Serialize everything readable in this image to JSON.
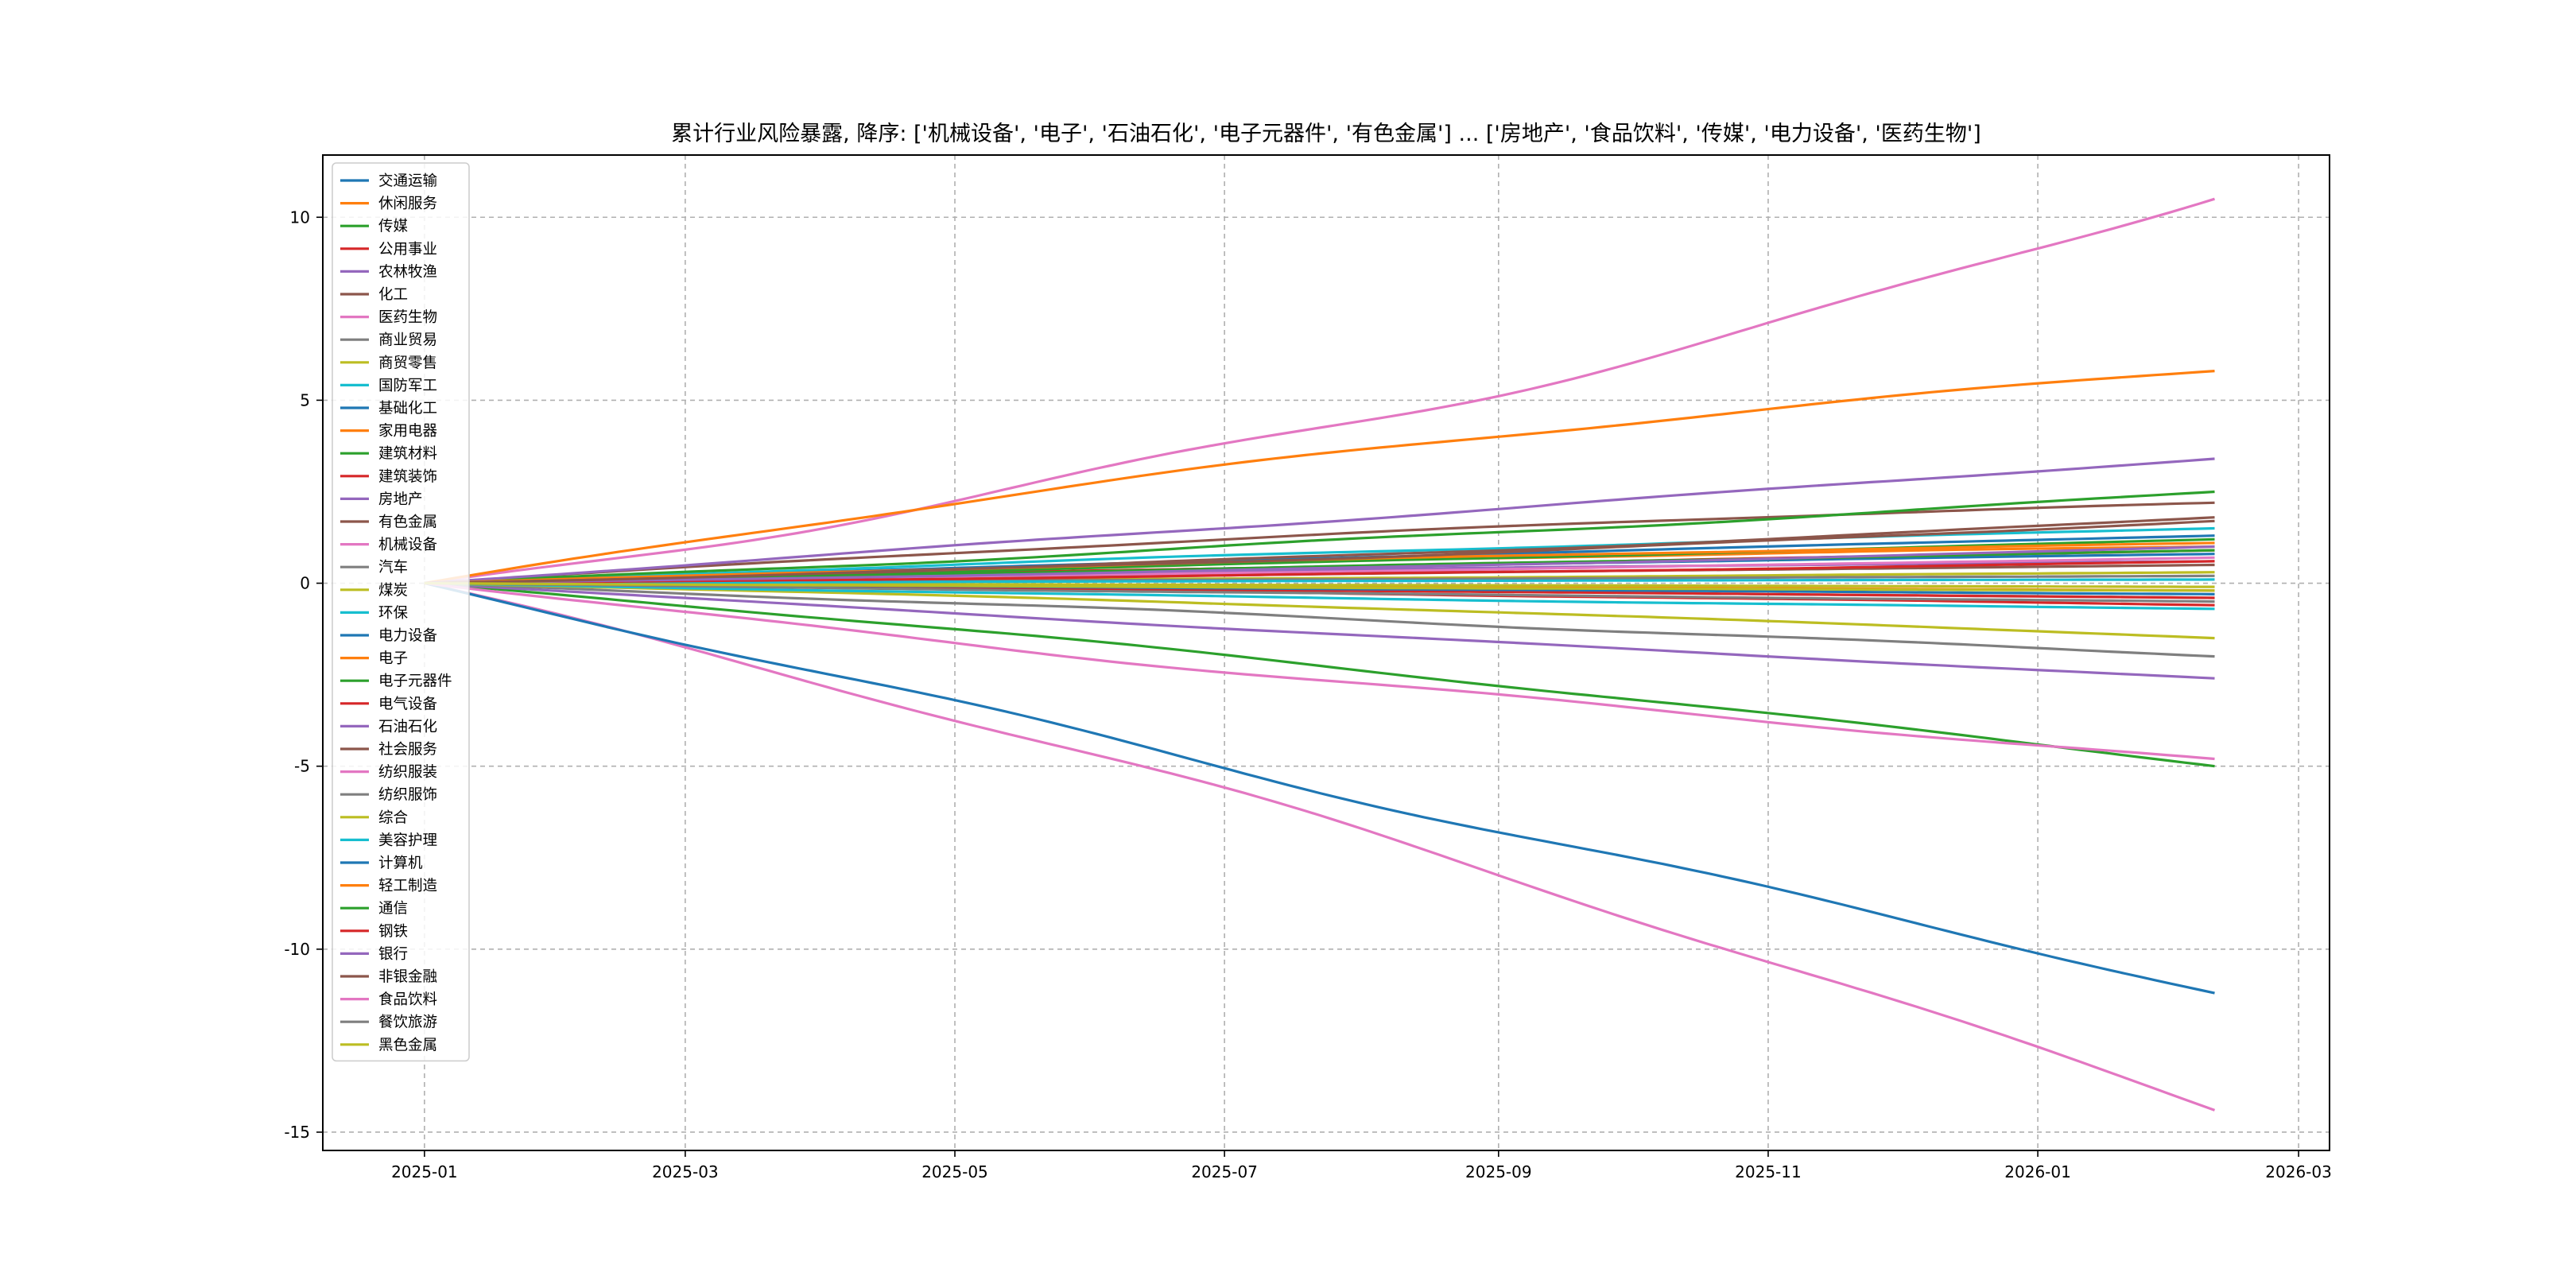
{
  "chart_data": {
    "type": "line",
    "title": "累计行业风险暴露, 降序: ['机械设备', '电子', '石油石化', '电子元器件', '有色金属'] ... ['房地产', '食品饮料', '传媒', '电力设备', '医药生物']",
    "xlabel": "",
    "ylabel": "",
    "x_range": [
      "2024-12-09",
      "2026-03-08"
    ],
    "ylim": [
      -15.5,
      11.7
    ],
    "x_ticks": [
      {
        "date": "2025-01-01",
        "label": "2025-01"
      },
      {
        "date": "2025-03-01",
        "label": "2025-03"
      },
      {
        "date": "2025-05-01",
        "label": "2025-05"
      },
      {
        "date": "2025-07-01",
        "label": "2025-07"
      },
      {
        "date": "2025-09-01",
        "label": "2025-09"
      },
      {
        "date": "2025-11-01",
        "label": "2025-11"
      },
      {
        "date": "2026-01-01",
        "label": "2026-01"
      },
      {
        "date": "2026-03-01",
        "label": "2026-03"
      }
    ],
    "y_ticks": [
      10,
      5,
      0,
      -5,
      -10,
      -15
    ],
    "grid": true,
    "legend_position": "upper-left",
    "x_start": "2025-01-01",
    "x_end": "2026-02-10",
    "series": [
      {
        "name": "交通运输",
        "color": "#1f77b4",
        "end": 0.8
      },
      {
        "name": "休闲服务",
        "color": "#ff7f0e",
        "end": -0.2
      },
      {
        "name": "传媒",
        "color": "#2ca02c",
        "end": -5.0
      },
      {
        "name": "公用事业",
        "color": "#d62728",
        "end": 0.9
      },
      {
        "name": "农林牧渔",
        "color": "#9467bd",
        "end": 0.6
      },
      {
        "name": "化工",
        "color": "#8c564b",
        "end": 0.5
      },
      {
        "name": "医药生物",
        "color": "#e377c2",
        "end": -14.4
      },
      {
        "name": "商业贸易",
        "color": "#7f7f7f",
        "end": -0.4
      },
      {
        "name": "商贸零售",
        "color": "#bcbd22",
        "end": 0.3
      },
      {
        "name": "国防军工",
        "color": "#17becf",
        "end": 1.5
      },
      {
        "name": "基础化工",
        "color": "#1f77b4",
        "end": 1.3
      },
      {
        "name": "家用电器",
        "color": "#ff7f0e",
        "end": 1.0
      },
      {
        "name": "建筑材料",
        "color": "#2ca02c",
        "end": 1.2
      },
      {
        "name": "建筑装饰",
        "color": "#d62728",
        "end": -0.6
      },
      {
        "name": "房地产",
        "color": "#9467bd",
        "end": -2.6
      },
      {
        "name": "有色金属",
        "color": "#8c564b",
        "end": 2.2
      },
      {
        "name": "机械设备",
        "color": "#e377c2",
        "end": 10.5
      },
      {
        "name": "汽车",
        "color": "#7f7f7f",
        "end": 0.2
      },
      {
        "name": "煤炭",
        "color": "#bcbd22",
        "end": -0.1
      },
      {
        "name": "环保",
        "color": "#17becf",
        "end": 0.1
      },
      {
        "name": "电力设备",
        "color": "#1f77b4",
        "end": -11.2
      },
      {
        "name": "电子",
        "color": "#ff7f0e",
        "end": 5.8
      },
      {
        "name": "电子元器件",
        "color": "#2ca02c",
        "end": 2.5
      },
      {
        "name": "电气设备",
        "color": "#d62728",
        "end": -0.4
      },
      {
        "name": "石油石化",
        "color": "#9467bd",
        "end": 3.4
      },
      {
        "name": "社会服务",
        "color": "#8c564b",
        "end": 1.8
      },
      {
        "name": "纺织服装",
        "color": "#e377c2",
        "end": 0.7
      },
      {
        "name": "纺织服饰",
        "color": "#7f7f7f",
        "end": -2.0
      },
      {
        "name": "综合",
        "color": "#bcbd22",
        "end": -1.5
      },
      {
        "name": "美容护理",
        "color": "#17becf",
        "end": -0.7
      },
      {
        "name": "计算机",
        "color": "#1f77b4",
        "end": -0.3
      },
      {
        "name": "轻工制造",
        "color": "#ff7f0e",
        "end": 1.1
      },
      {
        "name": "通信",
        "color": "#2ca02c",
        "end": 0.9
      },
      {
        "name": "钢铁",
        "color": "#d62728",
        "end": 0.6
      },
      {
        "name": "银行",
        "color": "#9467bd",
        "end": 1.0
      },
      {
        "name": "非银金融",
        "color": "#8c564b",
        "end": 1.7
      },
      {
        "name": "食品饮料",
        "color": "#e377c2",
        "end": -4.8
      },
      {
        "name": "餐饮旅游",
        "color": "#7f7f7f",
        "end": -0.5
      },
      {
        "name": "黑色金属",
        "color": "#bcbd22",
        "end": -0.2
      }
    ]
  }
}
